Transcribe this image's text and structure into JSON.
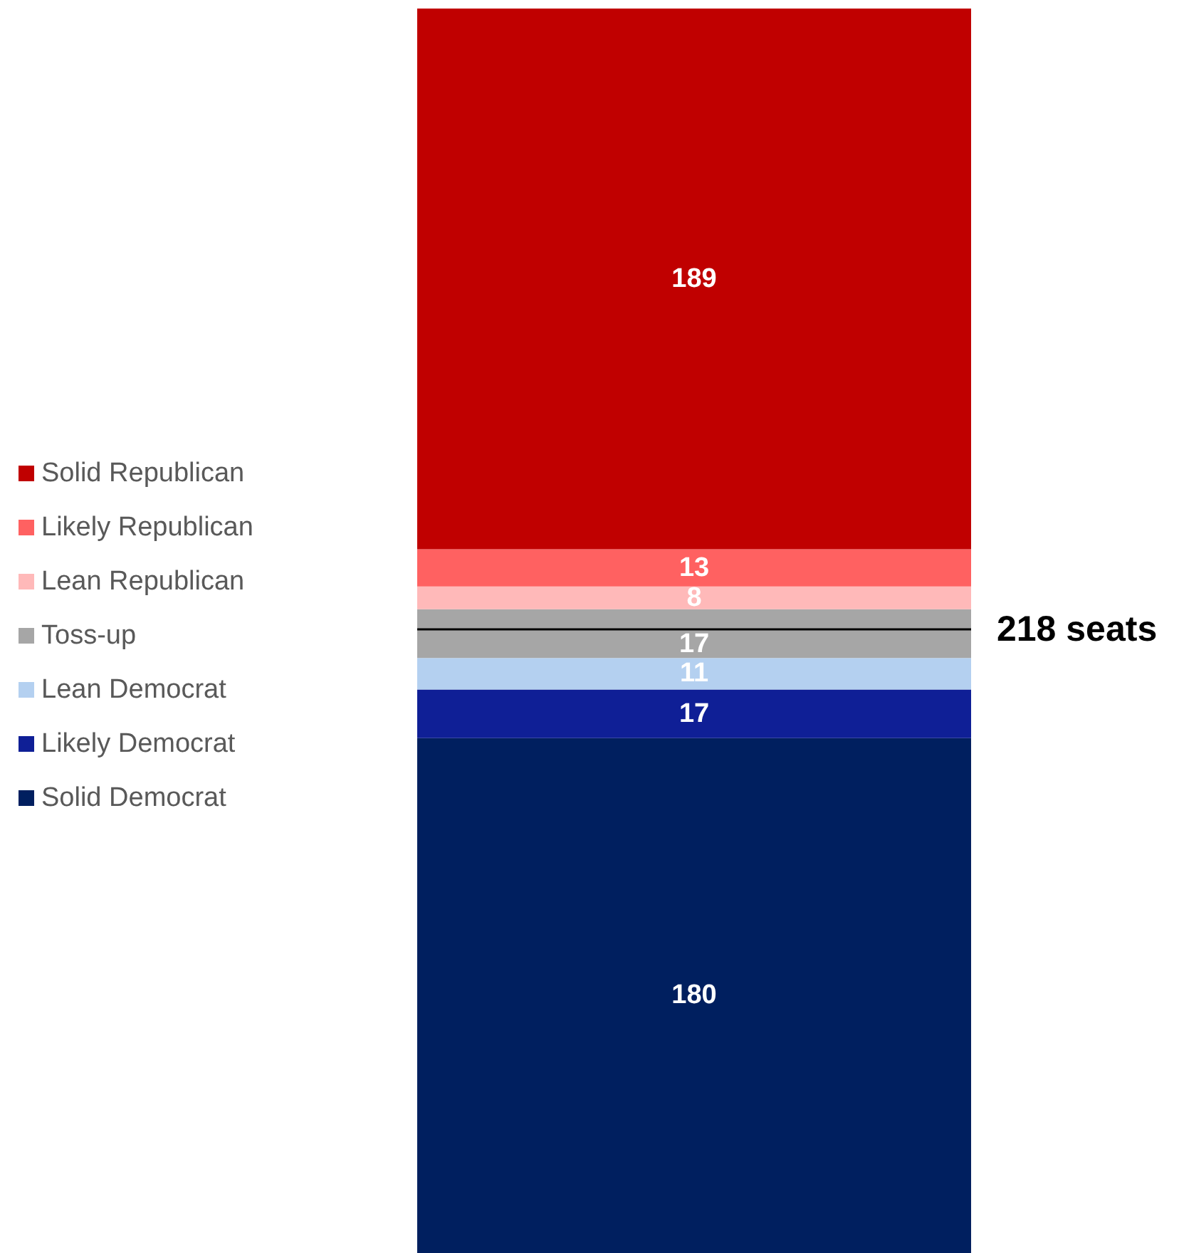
{
  "chart_data": {
    "type": "bar",
    "stacked": true,
    "categories": [
      null
    ],
    "ylim": [
      0,
      435
    ],
    "data_labels": true,
    "legend": "left",
    "tick_labels": false,
    "series": [
      {
        "name": "Solid Democrat",
        "color": "#001f5f",
        "values": [
          180
        ]
      },
      {
        "name": "Likely Democrat",
        "color": "#0f1f96",
        "values": [
          17
        ]
      },
      {
        "name": "Lean Democrat",
        "color": "#b4d0f0",
        "values": [
          11
        ]
      },
      {
        "name": "Toss-up",
        "color": "#a6a6a6",
        "values": [
          17
        ]
      },
      {
        "name": "Lean Republican",
        "color": "#ffb9b9",
        "values": [
          8
        ]
      },
      {
        "name": "Likely Republican",
        "color": "#ff6161",
        "values": [
          13
        ]
      },
      {
        "name": "Solid Republican",
        "color": "#c00000",
        "values": [
          189
        ]
      }
    ],
    "ref_lines": [
      {
        "axis": "y",
        "value": 218,
        "label": "218 seats",
        "color": "#000000"
      }
    ]
  }
}
